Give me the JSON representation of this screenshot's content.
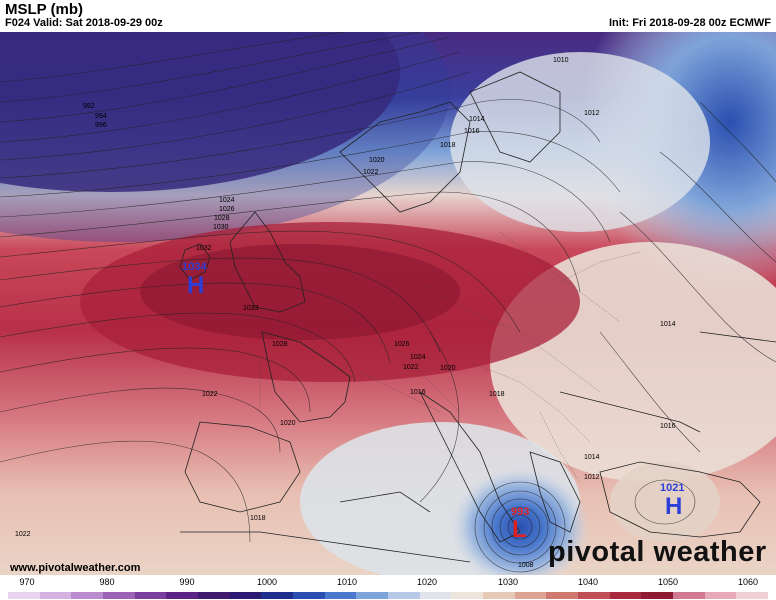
{
  "header": {
    "title": "MSLP (mb)",
    "valid": "F024 Valid: Sat 2018-09-29 00z",
    "init": "Init: Fri 2018-09-28 00z ECMWF"
  },
  "map": {
    "contour_labels": [
      {
        "text": "992"
      },
      {
        "text": "994"
      },
      {
        "text": "996"
      },
      {
        "text": "1010"
      },
      {
        "text": "1012"
      },
      {
        "text": "1014"
      },
      {
        "text": "1016"
      },
      {
        "text": "1018"
      },
      {
        "text": "1020"
      },
      {
        "text": "1022"
      },
      {
        "text": "1024"
      },
      {
        "text": "1026"
      },
      {
        "text": "1028"
      },
      {
        "text": "1030"
      },
      {
        "text": "1032"
      },
      {
        "text": "1033"
      },
      {
        "text": "1028"
      },
      {
        "text": "1026"
      },
      {
        "text": "1024"
      },
      {
        "text": "1022"
      },
      {
        "text": "1020"
      },
      {
        "text": "1016"
      },
      {
        "text": "1018"
      },
      {
        "text": "1022"
      },
      {
        "text": "1020"
      },
      {
        "text": "1018"
      },
      {
        "text": "1014"
      },
      {
        "text": "1012"
      },
      {
        "text": "1016"
      },
      {
        "text": "1014"
      },
      {
        "text": "1022"
      },
      {
        "text": "1008"
      }
    ],
    "systems": [
      {
        "type": "H",
        "value": "1034",
        "letter_color": "#2b3fd6",
        "value_color": "#2b3fd6"
      },
      {
        "type": "L",
        "value": "993",
        "letter_color": "#e02020",
        "value_color": "#e02020"
      },
      {
        "type": "H",
        "value": "1021",
        "letter_color": "#2b3fd6",
        "value_color": "#2b3fd6"
      }
    ]
  },
  "footer": {
    "url": "www.pivotalweather.com",
    "brand": "pivotal weather",
    "colorbar_ticks": [
      "970",
      "980",
      "990",
      "1000",
      "1010",
      "1020",
      "1030",
      "1040",
      "1050",
      "1060"
    ],
    "colorbar_colors": [
      "#e8d4ee",
      "#d4b2e0",
      "#b98ccd",
      "#9a63b6",
      "#7a3e9e",
      "#5b2585",
      "#3f1a6e",
      "#2a1a72",
      "#1f2d8c",
      "#2a4fb0",
      "#4a78cc",
      "#7ea3d9",
      "#b7c9e6",
      "#e0e4ea",
      "#eee6dc",
      "#e7c9b7",
      "#dca593",
      "#ce7a70",
      "#bf4e55",
      "#a82a3f",
      "#8f1a34",
      "#cf7a8e",
      "#e6aab6",
      "#efd0d5"
    ]
  }
}
